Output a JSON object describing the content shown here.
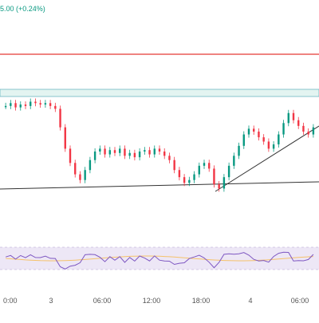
{
  "header": {
    "change_text": "5.00 (+0.24%)"
  },
  "colors": {
    "up": "#089981",
    "down": "#F23645",
    "resistance": "#E53935",
    "zone_fill": "#E3F4F1",
    "zone_stroke": "#6FB7C4",
    "trendline": "#333333",
    "rsi_line": "#7E57C2",
    "rsi_ma": "#F5C26B",
    "rsi_band": "#EDE7F6"
  },
  "time_axis": {
    "labels": [
      "0:00",
      "3",
      "06:00",
      "12:00",
      "18:00",
      "4",
      "06:00"
    ]
  },
  "chart_data": {
    "type": "candlestick",
    "title": "",
    "xlabel": "",
    "ylabel": "",
    "close_trend": [
      60,
      62,
      59,
      61,
      60,
      63,
      62,
      61,
      62,
      60,
      58,
      45,
      30,
      20,
      12,
      8,
      15,
      22,
      28,
      30,
      26,
      29,
      27,
      30,
      25,
      27,
      24,
      28,
      29,
      26,
      30,
      28,
      25,
      22,
      15,
      10,
      6,
      8,
      12,
      18,
      20,
      16,
      5,
      2,
      10,
      18,
      25,
      32,
      40,
      44,
      42,
      38,
      35,
      30,
      33,
      40,
      48,
      55,
      50,
      46,
      42,
      40,
      45
    ],
    "rsi": {
      "upper_band": 70,
      "lower_band": 30
    }
  }
}
